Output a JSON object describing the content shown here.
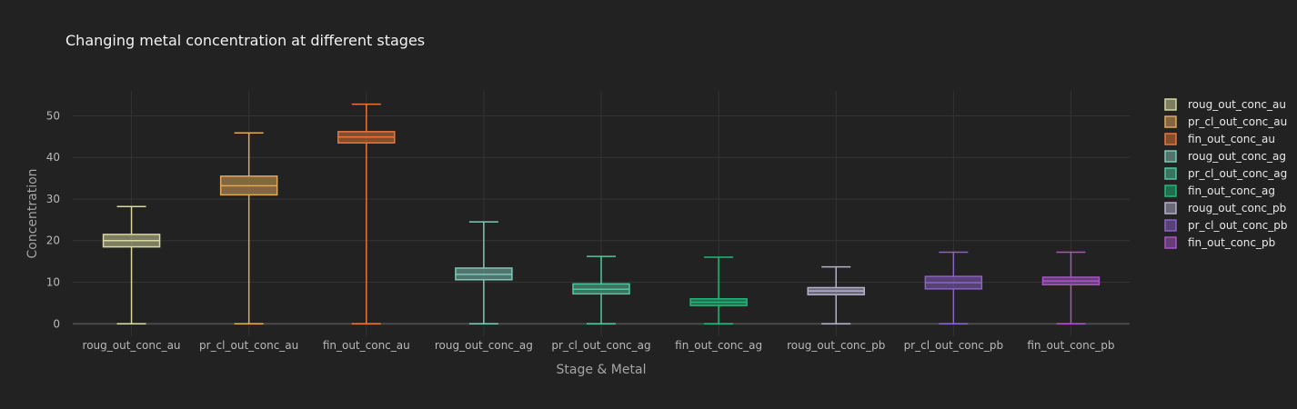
{
  "chart_data": {
    "type": "box",
    "title": "Changing metal concentration at different stages",
    "xlabel": "Stage & Metal",
    "ylabel": "Concentration",
    "ylim": [
      -3,
      56
    ],
    "yticks": [
      0,
      10,
      20,
      30,
      40,
      50
    ],
    "grid": true,
    "legend_position": "right",
    "categories": [
      "roug_out_conc_au",
      "pr_cl_out_conc_au",
      "fin_out_conc_au",
      "roug_out_conc_ag",
      "pr_cl_out_conc_ag",
      "fin_out_conc_ag",
      "roug_out_conc_pb",
      "pr_cl_out_conc_pb",
      "fin_out_conc_pb"
    ],
    "series": [
      {
        "name": "roug_out_conc_au",
        "color": "#d8d8a0",
        "min": 0,
        "q1": 18.5,
        "median": 20.0,
        "q3": 21.5,
        "max": 28.2
      },
      {
        "name": "pr_cl_out_conc_au",
        "color": "#e0a95a",
        "min": 0,
        "q1": 31.0,
        "median": 33.2,
        "q3": 35.5,
        "max": 45.9
      },
      {
        "name": "fin_out_conc_au",
        "color": "#e8763a",
        "min": 0,
        "q1": 43.5,
        "median": 44.9,
        "q3": 46.2,
        "max": 52.8
      },
      {
        "name": "roug_out_conc_ag",
        "color": "#7fc8b6",
        "min": 0,
        "q1": 10.6,
        "median": 11.9,
        "q3": 13.4,
        "max": 24.5
      },
      {
        "name": "pr_cl_out_conc_ag",
        "color": "#52c6a0",
        "min": 0,
        "q1": 7.2,
        "median": 8.3,
        "q3": 9.6,
        "max": 16.2
      },
      {
        "name": "fin_out_conc_ag",
        "color": "#22b87a",
        "min": 0,
        "q1": 4.4,
        "median": 5.2,
        "q3": 6.0,
        "max": 16.0
      },
      {
        "name": "roug_out_conc_pb",
        "color": "#b4b0cc",
        "min": 0,
        "q1": 7.0,
        "median": 7.9,
        "q3": 8.7,
        "max": 13.7
      },
      {
        "name": "pr_cl_out_conc_pb",
        "color": "#8a62c8",
        "min": 0,
        "q1": 8.4,
        "median": 9.9,
        "q3": 11.4,
        "max": 17.2
      },
      {
        "name": "fin_out_conc_pb",
        "color": "#a855c8",
        "min": 0,
        "q1": 9.4,
        "median": 10.3,
        "q3": 11.2,
        "max": 17.2
      }
    ]
  }
}
